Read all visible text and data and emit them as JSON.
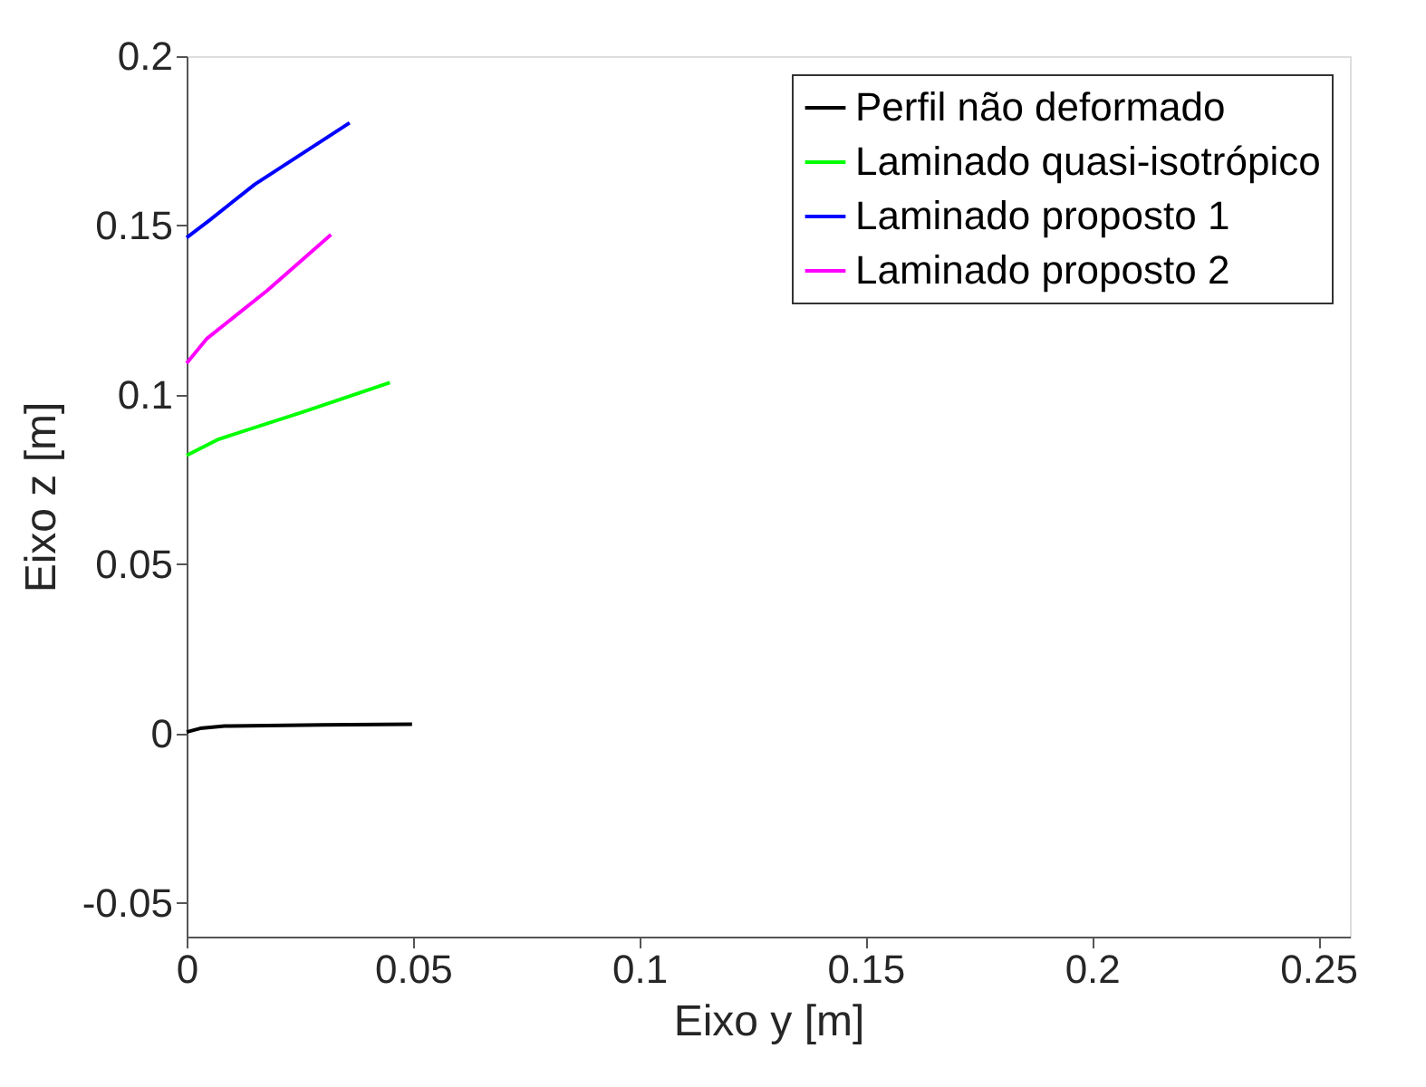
{
  "chart_data": {
    "type": "line",
    "xlabel": "Eixo y [m]",
    "ylabel": "Eixo z [m]",
    "xlim": [
      0,
      0.257
    ],
    "xticks": [
      {
        "value": 0,
        "label": "0"
      },
      0.05,
      0.1,
      0.15,
      0.2,
      0.25
    ],
    "ylim": [
      -0.06,
      0.2
    ],
    "yticks": [
      -0.05,
      {
        "value": 0,
        "label": "0"
      },
      0.05,
      0.1,
      0.15,
      0.2
    ],
    "legend": "top right",
    "grid": false,
    "line_style": "solid",
    "marker": "none",
    "series": [
      {
        "name": "Perfil não deformado",
        "color": "#000000",
        "x": [
          0,
          0.003,
          0.0084,
          0.03,
          0.0498
        ],
        "values": [
          0.0004,
          0.0015,
          0.0022,
          0.0025,
          0.0027
        ]
      },
      {
        "name": "Laminado quasi-isotrópico",
        "color": "#00ff00",
        "x": [
          0,
          0.0071,
          0.0258,
          0.0449
        ],
        "values": [
          0.0821,
          0.0869,
          0.095,
          0.1036
        ]
      },
      {
        "name": "Laminado proposto 1",
        "color": "#0000ff",
        "x": [
          0,
          0.005,
          0.0151,
          0.036
        ],
        "values": [
          0.1464,
          0.1515,
          0.1622,
          0.1803
        ]
      },
      {
        "name": "Laminado proposto 2",
        "color": "#ff00ff",
        "x": [
          0,
          0.0044,
          0.0178,
          0.0319
        ],
        "values": [
          0.1093,
          0.1165,
          0.1308,
          0.1473
        ]
      }
    ]
  }
}
